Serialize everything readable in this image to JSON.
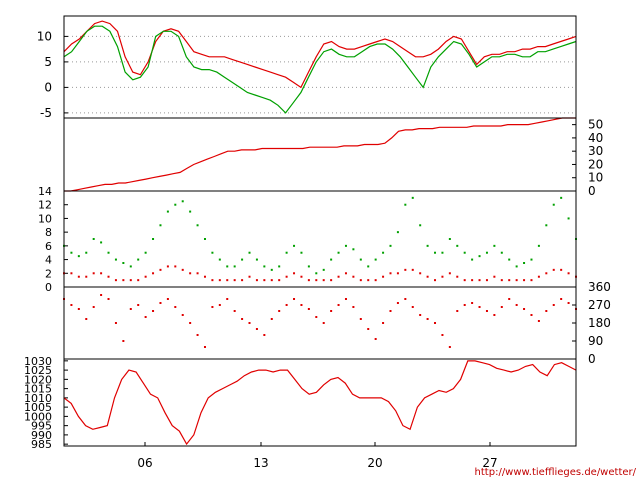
{
  "credit": "http://www.tiefflieges.de/wetter/",
  "colors": {
    "red": "#e00000",
    "green": "#00a000",
    "grid": "#999999",
    "frame": "#000000",
    "credit": "#c00000"
  },
  "chart_data": [
    {
      "type": "line",
      "ylim": [
        -6,
        14
      ],
      "yticks": [
        10,
        5,
        0,
        -5
      ],
      "grid": true,
      "series": [
        {
          "color": "#e00000",
          "values": [
            7,
            8.5,
            9.5,
            11,
            12.5,
            13,
            12.5,
            11,
            6,
            3,
            2.5,
            5,
            9,
            11,
            11.5,
            11,
            9,
            7,
            6.5,
            6,
            6,
            6,
            5.5,
            5,
            4.5,
            4,
            3.5,
            3,
            2.5,
            2,
            1,
            0,
            3,
            6,
            8.5,
            9,
            8,
            7.5,
            7.5,
            8,
            8.5,
            9,
            9.5,
            9,
            8,
            7,
            6,
            6,
            6.5,
            7.5,
            9,
            10,
            9.5,
            7,
            4.5,
            6,
            6.5,
            6.5,
            7,
            7,
            7.5,
            7.5,
            8,
            8,
            8.5,
            9,
            9.5,
            10
          ]
        },
        {
          "color": "#00a000",
          "values": [
            6,
            7,
            9,
            11,
            12,
            12,
            11,
            8,
            3,
            1.5,
            2,
            4,
            10,
            11,
            11,
            10,
            6,
            4,
            3.5,
            3.5,
            3,
            2,
            1,
            0,
            -1,
            -1.5,
            -2,
            -2.5,
            -3.5,
            -5,
            -3,
            -1,
            2,
            5,
            7,
            7.5,
            6.5,
            6,
            6,
            7,
            8,
            8.5,
            8.5,
            7.5,
            6,
            4,
            2,
            0,
            4,
            6,
            7.5,
            9,
            8.5,
            6.5,
            4,
            5,
            6,
            6,
            6.5,
            6.5,
            6,
            6,
            7,
            7,
            7.5,
            8,
            8.5,
            9
          ]
        }
      ]
    },
    {
      "type": "line",
      "ylim": [
        0,
        55
      ],
      "yticks": [
        50,
        40,
        30,
        20,
        10,
        0
      ],
      "series": [
        {
          "color": "#e00000",
          "values": [
            0,
            0,
            1,
            2,
            3,
            4,
            5,
            5,
            6,
            6,
            7,
            8,
            9,
            10,
            11,
            12,
            13,
            14,
            17,
            20,
            22,
            24,
            26,
            28,
            30,
            30,
            31,
            31,
            31,
            32,
            32,
            32,
            32,
            32,
            32,
            32,
            33,
            33,
            33,
            33,
            33,
            34,
            34,
            34,
            35,
            35,
            35,
            36,
            40,
            45,
            46,
            46,
            47,
            47,
            47,
            48,
            48,
            48,
            48,
            48,
            49,
            49,
            49,
            49,
            49,
            50,
            50,
            50,
            50,
            51,
            52,
            53,
            54,
            55,
            55,
            55
          ]
        }
      ]
    },
    {
      "type": "scatter",
      "ylim": [
        0,
        14
      ],
      "yticks": [
        14,
        12,
        10,
        8,
        6,
        4,
        2,
        0
      ],
      "series": [
        {
          "color": "#00a000",
          "values": [
            6,
            5,
            4.5,
            5,
            7,
            6.5,
            5,
            4,
            3.5,
            3,
            4,
            5,
            7,
            9,
            11,
            12,
            12.5,
            11,
            9,
            7,
            5,
            4,
            3,
            3,
            4,
            5,
            4,
            3,
            2.5,
            3,
            5,
            6,
            5,
            3,
            2,
            2.5,
            4,
            5,
            6,
            5.5,
            4,
            3,
            4,
            5,
            6,
            8,
            12,
            13,
            9,
            6,
            5,
            5,
            7,
            6,
            5,
            4,
            4.5,
            5,
            6,
            5,
            4,
            3,
            3.5,
            4,
            6,
            9,
            12,
            13,
            10,
            7
          ]
        },
        {
          "color": "#e00000",
          "values": [
            2,
            2,
            1.5,
            1.5,
            2,
            2,
            1.5,
            1,
            1,
            1,
            1,
            1.5,
            2,
            2.5,
            3,
            3,
            2.5,
            2,
            2,
            1.5,
            1,
            1,
            1,
            1,
            1,
            1.5,
            1,
            1,
            1,
            1,
            1.5,
            2,
            1.5,
            1,
            1,
            1,
            1,
            1.5,
            2,
            1.5,
            1,
            1,
            1,
            1.5,
            2,
            2,
            2.5,
            2.5,
            2,
            1.5,
            1,
            1.5,
            2,
            1.5,
            1,
            1,
            1,
            1,
            1.5,
            1,
            1,
            1,
            1,
            1,
            1.5,
            2,
            2.5,
            2.5,
            2,
            1.5
          ]
        }
      ]
    },
    {
      "type": "scatter",
      "ylim": [
        0,
        360
      ],
      "yticks": [
        360,
        270,
        180,
        90,
        0
      ],
      "series": [
        {
          "color": "#e00000",
          "values": [
            300,
            270,
            250,
            200,
            260,
            320,
            300,
            180,
            90,
            250,
            270,
            210,
            240,
            280,
            300,
            260,
            220,
            180,
            120,
            60,
            260,
            270,
            300,
            240,
            200,
            180,
            150,
            120,
            200,
            240,
            270,
            300,
            270,
            250,
            210,
            180,
            240,
            270,
            300,
            260,
            200,
            150,
            100,
            180,
            240,
            280,
            300,
            260,
            220,
            200,
            180,
            120,
            60,
            240,
            270,
            280,
            260,
            240,
            220,
            260,
            300,
            270,
            250,
            220,
            190,
            240,
            270,
            300,
            280,
            250
          ]
        }
      ]
    },
    {
      "type": "line",
      "ylim": [
        984,
        1031
      ],
      "yticks": [
        1030,
        1025,
        1020,
        1015,
        1010,
        1005,
        1000,
        995,
        990,
        985
      ],
      "xticks": [
        "06",
        "13",
        "20",
        "27"
      ],
      "series": [
        {
          "color": "#e00000",
          "values": [
            1010,
            1007,
            1000,
            995,
            993,
            994,
            995,
            1010,
            1020,
            1025,
            1024,
            1018,
            1012,
            1010,
            1002,
            995,
            992,
            985,
            990,
            1002,
            1010,
            1013,
            1015,
            1017,
            1019,
            1022,
            1024,
            1025,
            1025,
            1024,
            1025,
            1025,
            1020,
            1015,
            1012,
            1013,
            1017,
            1020,
            1021,
            1018,
            1012,
            1010,
            1010,
            1010,
            1010,
            1008,
            1003,
            995,
            993,
            1005,
            1010,
            1012,
            1014,
            1013,
            1015,
            1020,
            1030,
            1030,
            1029,
            1028,
            1026,
            1025,
            1024,
            1025,
            1027,
            1028,
            1024,
            1022,
            1028,
            1029,
            1027,
            1025
          ]
        }
      ]
    }
  ]
}
